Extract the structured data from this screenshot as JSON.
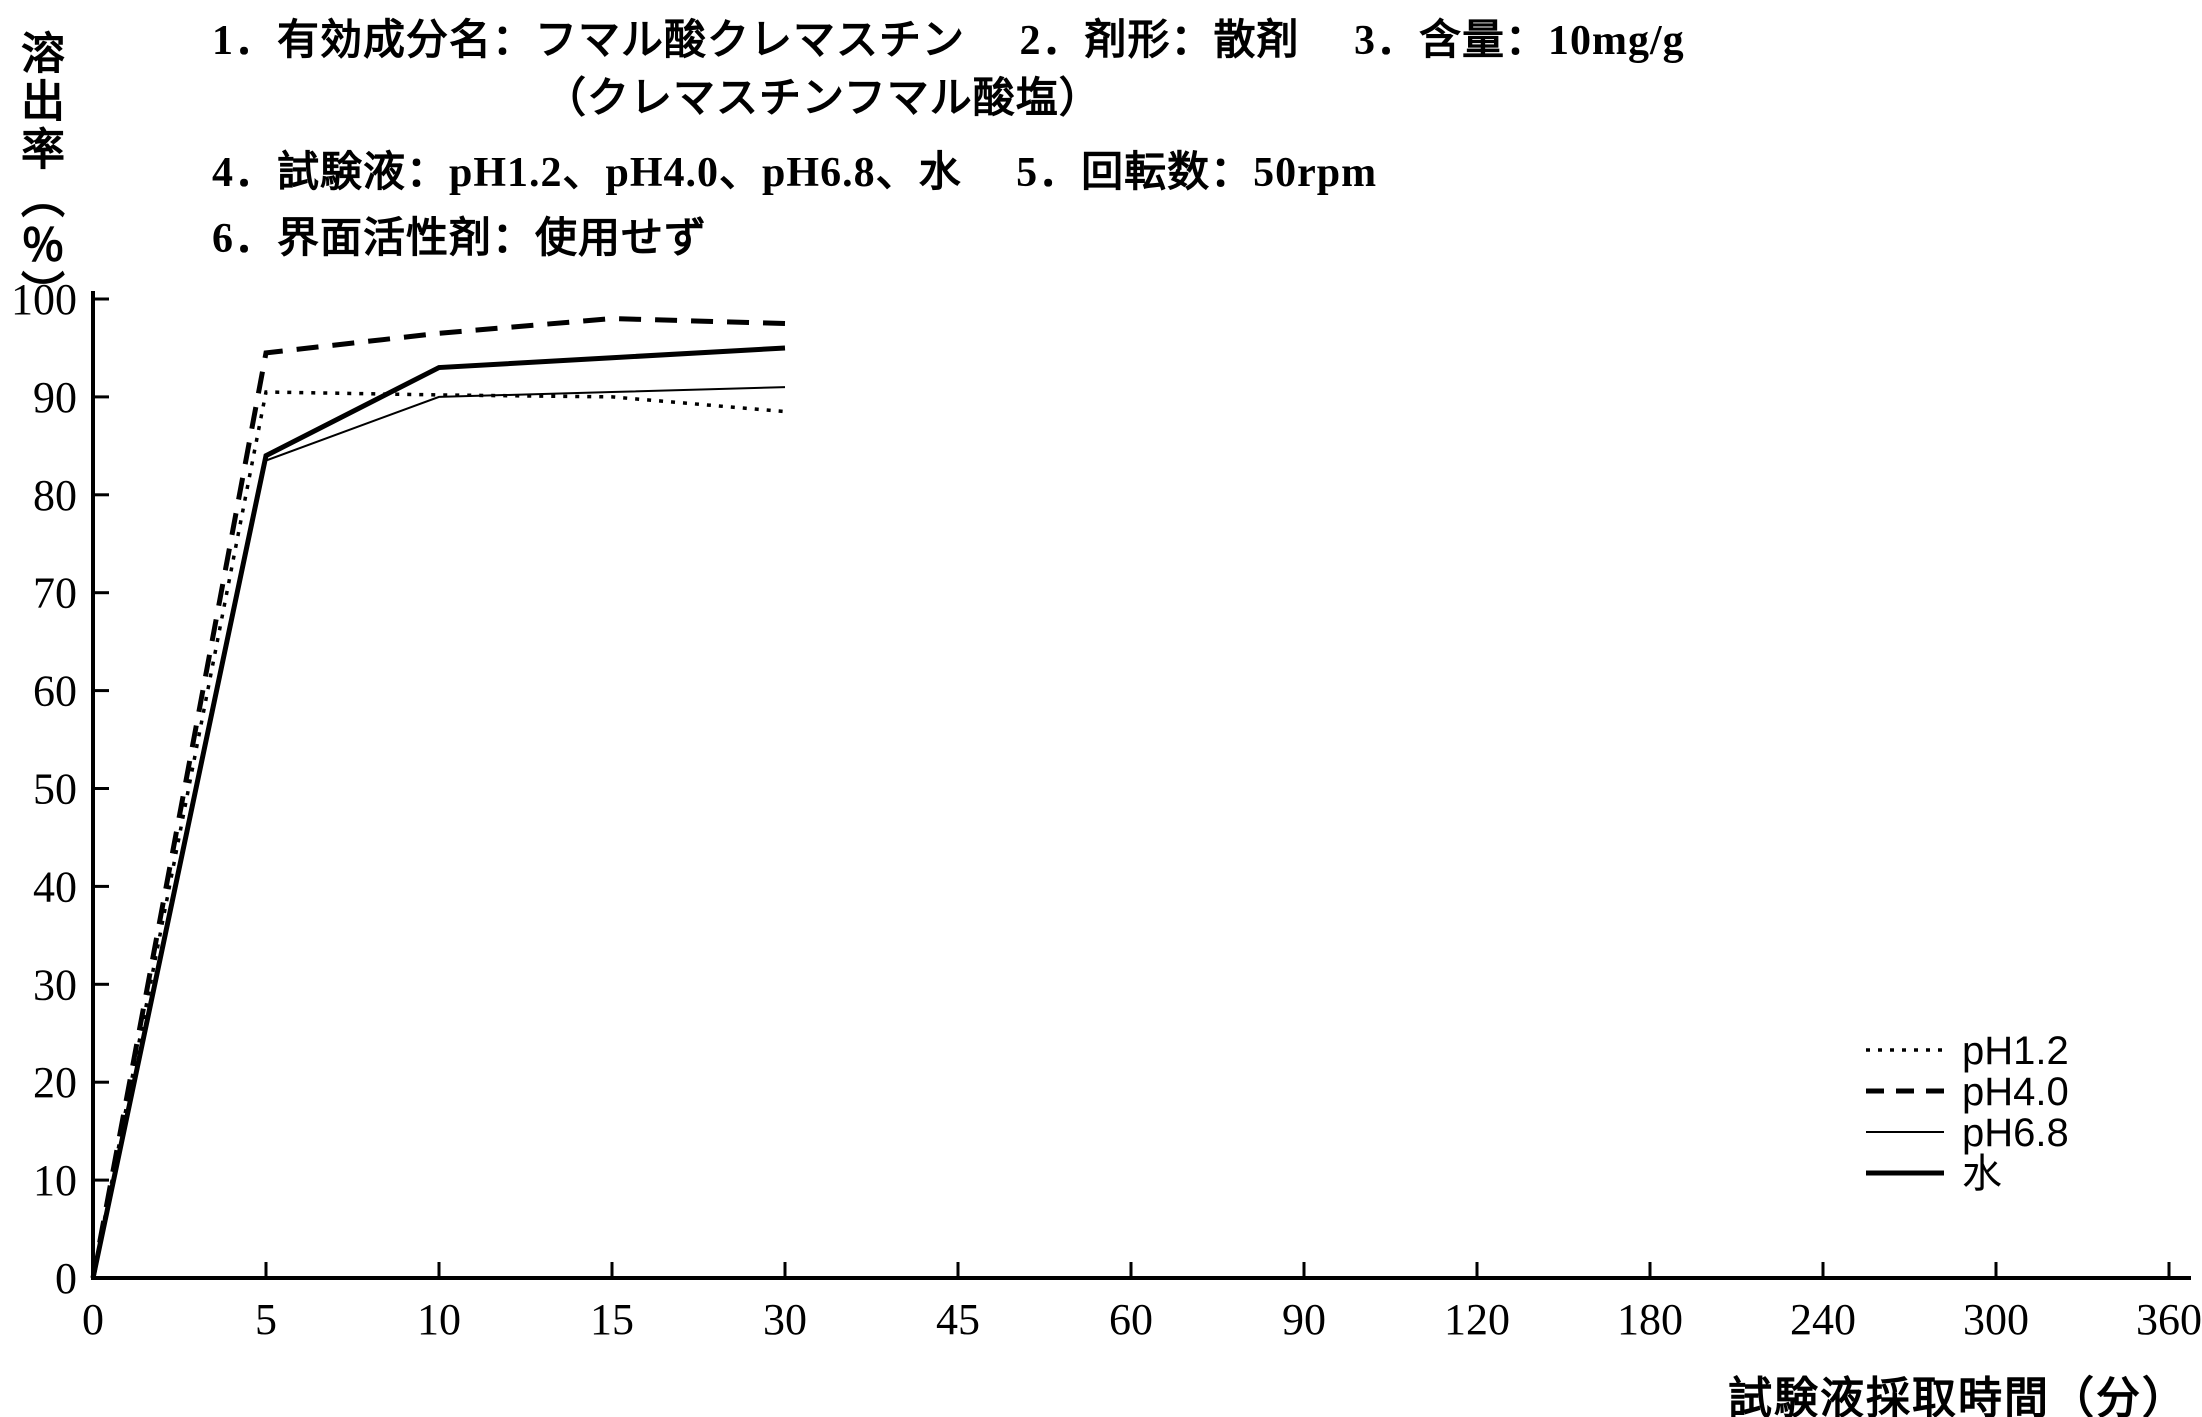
{
  "header": {
    "line1": "1．有効成分名：フマル酸クレマスチン　 2．剤形：散剤　 3．含量：10mg/g",
    "line2": "（クレマスチンフマル酸塩）",
    "line3": "4．試験液：pH1.2、pH4.0、pH6.8、水　 5．回転数：50rpm",
    "line4": "6．界面活性剤：使用せず"
  },
  "chart_data": {
    "type": "line",
    "title": "",
    "xlabel": "試験液採取時間（分）",
    "ylabel": "溶出率（％）",
    "x_scale": "categorical-equal-spacing",
    "x_ticks": [
      0,
      5,
      10,
      15,
      30,
      45,
      60,
      90,
      120,
      180,
      240,
      300,
      360
    ],
    "y_ticks": [
      0,
      10,
      20,
      30,
      40,
      50,
      60,
      70,
      80,
      90,
      100
    ],
    "ylim": [
      0,
      100
    ],
    "grid": false,
    "legend_position": "right-middle",
    "color": "#000000",
    "background": "#ffffff",
    "x": [
      0,
      5,
      10,
      15,
      30
    ],
    "series": [
      {
        "name": "pH1.2",
        "line_style": "dotted",
        "line_weight": "thin",
        "values": [
          0,
          90.5,
          90.2,
          90,
          88.5
        ]
      },
      {
        "name": "pH4.0",
        "line_style": "dashed",
        "line_weight": "thick",
        "values": [
          0,
          94.5,
          96.5,
          98,
          97.5
        ]
      },
      {
        "name": "pH6.8",
        "line_style": "solid",
        "line_weight": "thin",
        "values": [
          0,
          83.5,
          90,
          90.5,
          91
        ]
      },
      {
        "name": "水",
        "line_style": "solid",
        "line_weight": "thick",
        "values": [
          0,
          84,
          93,
          94,
          95
        ]
      }
    ]
  }
}
